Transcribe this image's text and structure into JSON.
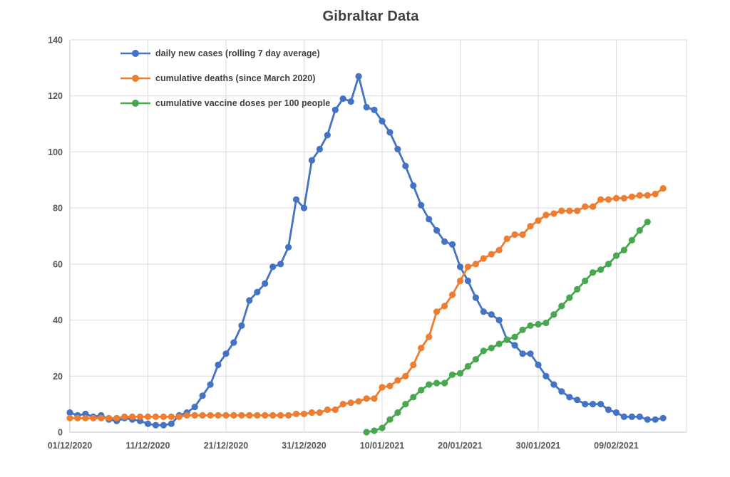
{
  "chart_data": {
    "type": "line",
    "title": "Gibraltar Data",
    "x_axis": {
      "start_label": "01/12/2020",
      "end_label": "09/02/2021",
      "x_max_day": 79,
      "ticks": [
        {
          "day": 0,
          "label": "01/12/2020"
        },
        {
          "day": 10,
          "label": "11/12/2020"
        },
        {
          "day": 20,
          "label": "21/12/2020"
        },
        {
          "day": 30,
          "label": "31/12/2020"
        },
        {
          "day": 40,
          "label": "10/01/2021"
        },
        {
          "day": 50,
          "label": "20/01/2021"
        },
        {
          "day": 60,
          "label": "30/01/2021"
        },
        {
          "day": 70,
          "label": "09/02/2021"
        }
      ]
    },
    "y_axis": {
      "ylim": [
        0,
        140
      ],
      "ticks": [
        {
          "value": 0,
          "label": "0"
        },
        {
          "value": 20,
          "label": "20"
        },
        {
          "value": 40,
          "label": "40"
        },
        {
          "value": 60,
          "label": "60"
        },
        {
          "value": 80,
          "label": "80"
        },
        {
          "value": 100,
          "label": "100"
        },
        {
          "value": 120,
          "label": "120"
        },
        {
          "value": 140,
          "label": "140"
        }
      ]
    },
    "legend_position": "top-left-inside",
    "grid": true,
    "colors": {
      "grid": "#d9d9d9",
      "axis_line": "#c6c6c6",
      "tick_text": "#595959",
      "title_text": "#3f3f3f"
    },
    "series": [
      {
        "id": "daily-new-cases",
        "name": "daily new cases (rolling 7 day average)",
        "color": "#4472c4",
        "start_index": 0,
        "values": [
          7,
          6,
          6.5,
          5.5,
          6,
          4.5,
          4,
          5,
          4.5,
          4,
          3,
          2.5,
          2.5,
          3,
          6,
          7,
          9,
          13,
          17,
          24,
          28,
          32,
          38,
          47,
          50,
          53,
          59,
          60,
          66,
          83,
          80,
          97,
          101,
          106,
          115,
          119,
          118,
          127,
          116,
          115,
          111,
          107,
          101,
          95,
          88,
          81,
          76,
          72,
          68,
          67,
          59,
          54,
          48,
          43,
          42,
          40,
          33,
          31,
          28,
          28,
          24,
          20,
          17,
          14.5,
          12.5,
          11.5,
          10,
          10,
          10,
          8,
          7,
          5.5,
          5.5,
          5.5,
          4.5,
          4.5,
          5
        ]
      },
      {
        "id": "cumulative-deaths",
        "name": "cumulative deaths (since March 2020)",
        "color": "#ed7d31",
        "start_index": 0,
        "values": [
          5,
          5,
          5,
          5,
          5,
          5,
          5,
          5.5,
          5.5,
          5.5,
          5.5,
          5.5,
          5.5,
          5.5,
          5.5,
          6,
          6,
          6,
          6,
          6,
          6,
          6,
          6,
          6,
          6,
          6,
          6,
          6,
          6,
          6.5,
          6.5,
          7,
          7,
          8,
          8,
          10,
          10.5,
          11,
          12,
          12,
          16,
          16.5,
          18.5,
          20,
          24,
          30,
          34,
          43,
          45,
          49,
          54,
          59,
          60,
          62,
          63.5,
          65,
          69,
          70.5,
          70.5,
          73.5,
          75.5,
          77.5,
          78,
          79,
          79,
          79,
          80.5,
          80.5,
          83,
          83,
          83.5,
          83.5,
          84,
          84.5,
          84.5,
          85,
          87
        ]
      },
      {
        "id": "cumulative-vaccine-doses",
        "name": "cumulative vaccine doses per 100 people",
        "color": "#47a84e",
        "start_index": 38,
        "values": [
          0,
          0.5,
          1.5,
          4.5,
          7,
          10,
          12.5,
          15,
          17,
          17.5,
          17.5,
          20.5,
          21,
          23.5,
          26,
          29,
          30,
          31.5,
          33,
          34,
          36.5,
          38,
          38.5,
          39,
          42,
          45,
          48,
          51,
          54,
          57,
          58,
          60,
          63,
          65,
          68.5,
          72,
          75
        ]
      }
    ]
  }
}
